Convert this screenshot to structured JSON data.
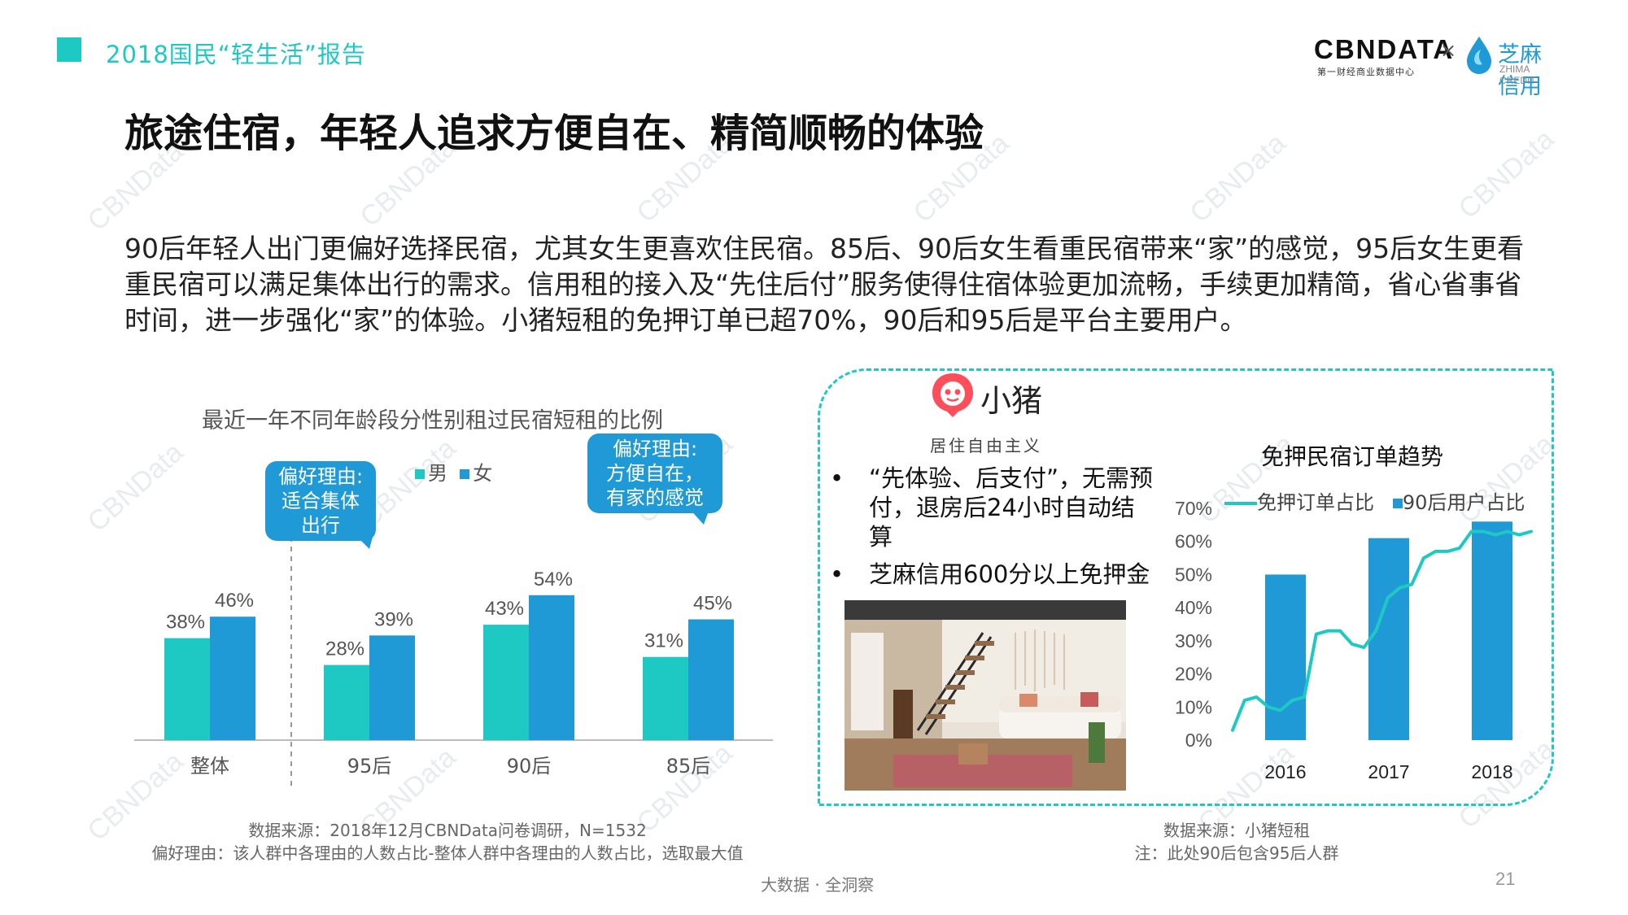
{
  "header": {
    "title": "2018国民“轻生活”报告"
  },
  "logo": {
    "brand": "CBNDATA",
    "brand_sub": "第一财经商业数据中心",
    "times": "×",
    "partner": "芝麻信用",
    "partner_sub": "ZHIMA CREDIT"
  },
  "main_title": "旅途住宿，年轻人追求方便自在、精简顺畅的体验",
  "description": "90后年轻人出门更偏好选择民宿，尤其女生更喜欢住民宿。85后、90后女生看重民宿带来“家”的感觉，95后女生更看重民宿可以满足集体出行的需求。信用租的接入及“先住后付”服务使得住宿体验更加流畅，手续更加精简，省心省事省时间，进一步强化“家”的体验。小猪短租的免押订单已超70%，90后和95后是平台主要用户。",
  "watermark": "CBNData",
  "colors": {
    "teal": "#1ec9c4",
    "blue": "#1f9ad6"
  },
  "bubbles": [
    {
      "lines": [
        "偏好理由:",
        "适合集体",
        "出行"
      ]
    },
    {
      "lines": [
        "偏好理由:",
        "方便自在，",
        "有家的感觉"
      ]
    }
  ],
  "source_left": [
    "数据来源：2018年12月CBNData问卷调研，N=1532",
    "偏好理由：该人群中各理由的人数占比-整体人群中各理由的人数占比，选取最大值"
  ],
  "panel": {
    "brand": "小猪",
    "slogan": "居住自由主义",
    "bullets": [
      "“先体验、后支付”，无需预付，退房后24小时自动结算",
      "芝麻信用600分以上免押金"
    ]
  },
  "source_right": [
    "数据来源：小猪短租",
    "注：此处90后包含95后人群"
  ],
  "footer": "大数据 · 全洞察",
  "page_number": "21",
  "chart_data": [
    {
      "type": "bar",
      "title": "最近一年不同年龄段分性别租过民宿短租的比例",
      "categories": [
        "整体",
        "95后",
        "90后",
        "85后"
      ],
      "series": [
        {
          "name": "男",
          "values": [
            38,
            28,
            43,
            31
          ],
          "color": "#1ec9c4"
        },
        {
          "name": "女",
          "values": [
            46,
            39,
            54,
            45
          ],
          "color": "#1f9ad6"
        }
      ],
      "value_suffix": "%",
      "legend": "top",
      "grid": false
    },
    {
      "type": "bar+line",
      "title": "免押民宿订单趋势",
      "categories": [
        "2016",
        "2017",
        "2018"
      ],
      "bar_series": {
        "name": "90后用户占比",
        "values": [
          50,
          61,
          66
        ],
        "color": "#1f9ad6"
      },
      "line_series": {
        "name": "免押订单占比",
        "color": "#1ec9c4",
        "x": [
          0,
          0.04,
          0.08,
          0.12,
          0.16,
          0.2,
          0.24,
          0.28,
          0.32,
          0.36,
          0.4,
          0.44,
          0.48,
          0.52,
          0.56,
          0.6,
          0.64,
          0.68,
          0.72,
          0.76,
          0.8,
          0.84,
          0.88,
          0.92,
          0.96,
          1.0
        ],
        "values": [
          3,
          12,
          13,
          10,
          9,
          12,
          13,
          32,
          33,
          33,
          29,
          28,
          33,
          43,
          46,
          47,
          55,
          57,
          57,
          58,
          63,
          63,
          62,
          63,
          62,
          63
        ]
      },
      "y_ticks": [
        "70%",
        "60%",
        "50%",
        "40%",
        "30%",
        "20%",
        "10%",
        "0%"
      ],
      "ylim": [
        0,
        70
      ],
      "legend": "top"
    }
  ]
}
